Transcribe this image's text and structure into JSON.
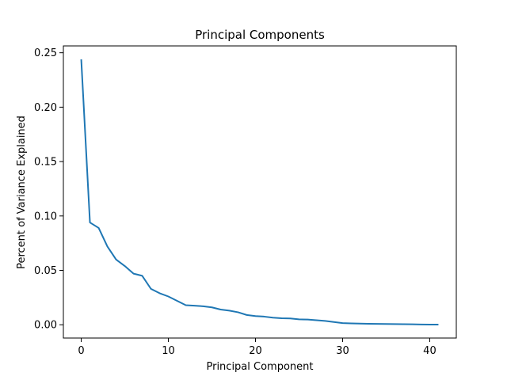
{
  "chart_data": {
    "type": "line",
    "title": "Principal Components",
    "xlabel": "Principal Component",
    "ylabel": "Percent of Variance Explained",
    "xlim": [
      -2.05,
      43.05
    ],
    "ylim": [
      -0.0122,
      0.2563
    ],
    "xticks": [
      0,
      10,
      20,
      30,
      40
    ],
    "yticks": [
      0.0,
      0.05,
      0.1,
      0.15,
      0.2,
      0.25
    ],
    "xtick_labels": [
      "0",
      "10",
      "20",
      "30",
      "40"
    ],
    "ytick_labels": [
      "0.00",
      "0.05",
      "0.10",
      "0.15",
      "0.20",
      "0.25"
    ],
    "grid": false,
    "legend": "none",
    "series": [
      {
        "color": "#1f77b4",
        "x": [
          0,
          1,
          2,
          3,
          4,
          5,
          6,
          7,
          8,
          9,
          10,
          11,
          12,
          13,
          14,
          15,
          16,
          17,
          18,
          19,
          20,
          21,
          22,
          23,
          24,
          25,
          26,
          27,
          28,
          29,
          30,
          31,
          32,
          33,
          34,
          35,
          36,
          37,
          38,
          39,
          40,
          41
        ],
        "values": [
          0.244,
          0.094,
          0.089,
          0.072,
          0.06,
          0.054,
          0.047,
          0.045,
          0.033,
          0.029,
          0.026,
          0.022,
          0.018,
          0.0175,
          0.017,
          0.016,
          0.014,
          0.013,
          0.0115,
          0.009,
          0.008,
          0.0075,
          0.0065,
          0.006,
          0.0058,
          0.005,
          0.0048,
          0.0042,
          0.0035,
          0.0025,
          0.0015,
          0.0013,
          0.0011,
          0.0009,
          0.0008,
          0.0007,
          0.0006,
          0.0005,
          0.0004,
          0.0003,
          0.0002,
          0.0002
        ]
      }
    ]
  }
}
